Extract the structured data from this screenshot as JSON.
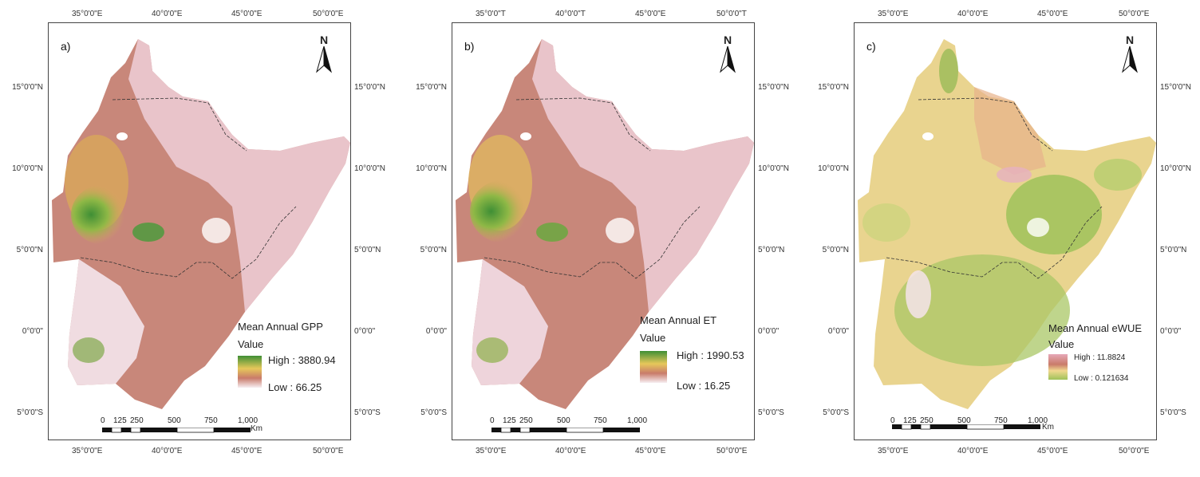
{
  "colors": {
    "high_green": "#3f8f35",
    "mid_yellow": "#e6c85a",
    "mid_brown": "#c97b6a",
    "low_pink": "#ecc8d2",
    "low_white": "#f7eef2",
    "ewue_green": "#9fc25a",
    "ewue_yellow": "#f0d88e"
  },
  "panels": [
    {
      "letter": "a)",
      "lon_top": [
        "35°0'0\"E",
        "40°0'0\"E",
        "45°0'0\"E",
        "50°0'0\"E"
      ],
      "lon_bottom": [
        "35°0'0\"E",
        "40°0'0\"E",
        "45°0'0\"E",
        "50°0'0\"E"
      ],
      "lat_left": [
        "15°0'0\"N",
        "10°0'0\"N",
        "5°0'0\"N",
        "0°0'0\"",
        "5°0'0\"S"
      ],
      "lat_right": [
        "15°0'0\"N",
        "10°0'0\"N",
        "5°0'0\"N",
        "0°0'0\"",
        "5°0'0\"S"
      ],
      "north": "N",
      "legend": {
        "title": "Mean Annual GPP",
        "subtitle": "Value",
        "high": "High : 3880.94",
        "low": "Low : 66.25",
        "ramp_icon": "green-to-pink-ramp"
      },
      "scale": {
        "labels": [
          "0",
          "125",
          "250",
          "500",
          "750",
          "1,000"
        ],
        "unit": "Km"
      }
    },
    {
      "letter": "b)",
      "lon_top": [
        "35°0'0\"T",
        "40°0'0\"T",
        "45°0'0\"E",
        "50°0'0\"T"
      ],
      "lon_bottom": [
        "35°0'0\"E",
        "40°0'0\"E",
        "45°0'0\"E",
        "50°0'0\"E"
      ],
      "lat_left": [
        "15°0'0\"N",
        "10°0'0\"N",
        "5°0'0\"N",
        "0°0'0\"",
        "5°0'0\"S"
      ],
      "lat_right": [
        "15°0'0\"N",
        "10°0'0\"N",
        "5°0'0\"N",
        "0°0'0\"",
        "5°0'0\"S"
      ],
      "north": "N",
      "legend": {
        "title": "Mean Annual ET",
        "subtitle": "Value",
        "high": "High : 1990.53",
        "low": "Low : 16.25",
        "ramp_icon": "green-to-pink-ramp"
      },
      "scale": {
        "labels": [
          "0",
          "125",
          "250",
          "500",
          "750",
          "1,000"
        ],
        "unit": "Km"
      }
    },
    {
      "letter": "c)",
      "lon_top": [
        "35°0'0\"E",
        "40°0'0\"E",
        "45°0'0\"E",
        "50°0'0\"E"
      ],
      "lon_bottom": [
        "35°0'0\"E",
        "40°0'0\"E",
        "45°0'0\"E",
        "50°0'0\"E"
      ],
      "lat_left": [
        "15°0'0\"N",
        "10°0'0\"N",
        "5°0'0\"N",
        "0°0'0\"",
        "5°0'0\"S"
      ],
      "lat_right": [
        "15°0'0\"N",
        "10°0'0\"N",
        "5°0'0\"N",
        "0°0'0\"",
        "5°0'0\"S"
      ],
      "north": "N",
      "legend": {
        "title": "Mean Annual eWUE",
        "subtitle": "Value",
        "high": "High : 11.8824",
        "low": "Low : 0.121634",
        "ramp_icon": "pink-to-green-ramp"
      },
      "scale": {
        "labels": [
          "0",
          "125",
          "250",
          "500",
          "750",
          "1,000"
        ],
        "unit": "Km"
      }
    }
  ]
}
